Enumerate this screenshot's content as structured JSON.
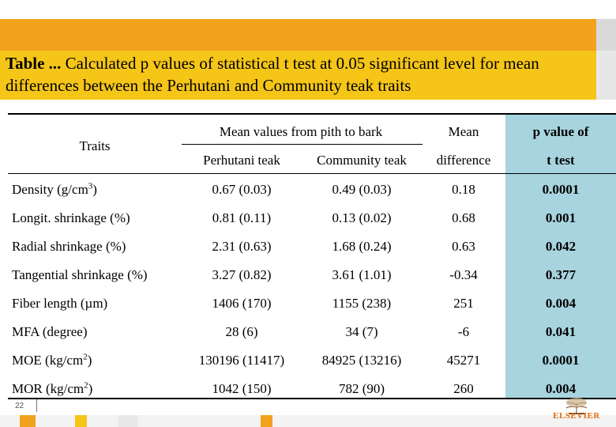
{
  "title": {
    "bold_prefix": "Table ...",
    "text": " Calculated p values of statistical t test at 0.05 significant level for mean differences between the Perhutani and Community teak traits"
  },
  "header": {
    "traits": "Traits",
    "mean_values_group": "Mean values from pith to bark",
    "perhutani": "Perhutani teak",
    "community": "Community teak",
    "mean_line1": "Mean",
    "mean_line2": "difference",
    "p_line1": "p value of",
    "p_line2": "t test"
  },
  "rows": [
    {
      "trait": "Density (g/cm",
      "sup": "3",
      "trait_suffix": ")",
      "perhutani": "0.67 (0.03)",
      "community": "0.49 (0.03)",
      "diff": "0.18",
      "p": "0.0001"
    },
    {
      "trait": "Longit. shrinkage (%)",
      "sup": "",
      "trait_suffix": "",
      "perhutani": "0.81 (0.11)",
      "community": "0.13 (0.02)",
      "diff": "0.68",
      "p": "0.001"
    },
    {
      "trait": "Radial shrinkage (%)",
      "sup": "",
      "trait_suffix": "",
      "perhutani": "2.31 (0.63)",
      "community": "1.68 (0.24)",
      "diff": "0.63",
      "p": "0.042"
    },
    {
      "trait": "Tangential shrinkage (%)",
      "sup": "",
      "trait_suffix": "",
      "perhutani": "3.27 (0.82)",
      "community": "3.61 (1.01)",
      "diff": "-0.34",
      "p": "0.377"
    },
    {
      "trait": "Fiber length (µm)",
      "sup": "",
      "trait_suffix": "",
      "perhutani": "1406 (170)",
      "community": "1155 (238)",
      "diff": "251",
      "p": "0.004"
    },
    {
      "trait": "MFA (degree)",
      "sup": "",
      "trait_suffix": "",
      "perhutani": "28 (6)",
      "community": "34 (7)",
      "diff": "-6",
      "p": "0.041"
    },
    {
      "trait": "MOE (kg/cm",
      "sup": "2",
      "trait_suffix": ")",
      "perhutani": "130196 (11417)",
      "community": "84925 (13216)",
      "diff": "45271",
      "p": "0.0001"
    },
    {
      "trait": "MOR (kg/cm",
      "sup": "2",
      "trait_suffix": ")",
      "perhutani": "1042 (150)",
      "community": "782 (90)",
      "diff": "260",
      "p": "0.004"
    }
  ],
  "footer": {
    "page_number": "22",
    "logo_text": "ELSEVIER"
  },
  "colors": {
    "orange_bar": "#f2a21d",
    "title_yellow": "#f5c518",
    "p_column": "#a8d4df"
  }
}
